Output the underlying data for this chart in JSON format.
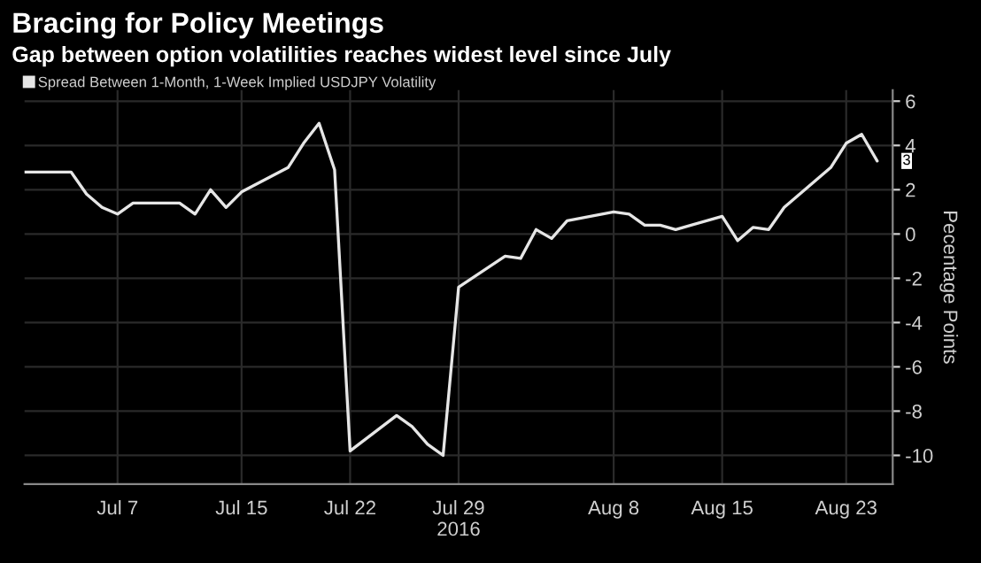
{
  "chart_data": {
    "type": "line",
    "title": "Bracing for Policy Meetings",
    "subtitle": "Gap between option volatilities reaches widest level since July",
    "ylabel": "Pecentage Points",
    "x": [
      "2016-07-01",
      "2016-07-04",
      "2016-07-05",
      "2016-07-06",
      "2016-07-07",
      "2016-07-08",
      "2016-07-11",
      "2016-07-12",
      "2016-07-13",
      "2016-07-14",
      "2016-07-15",
      "2016-07-18",
      "2016-07-19",
      "2016-07-20",
      "2016-07-21",
      "2016-07-22",
      "2016-07-25",
      "2016-07-26",
      "2016-07-27",
      "2016-07-28",
      "2016-07-29",
      "2016-08-01",
      "2016-08-02",
      "2016-08-03",
      "2016-08-04",
      "2016-08-05",
      "2016-08-08",
      "2016-08-09",
      "2016-08-10",
      "2016-08-11",
      "2016-08-12",
      "2016-08-15",
      "2016-08-16",
      "2016-08-17",
      "2016-08-18",
      "2016-08-19",
      "2016-08-22",
      "2016-08-23",
      "2016-08-24",
      "2016-08-25"
    ],
    "series": [
      {
        "name": "Spread Between 1-Month, 1-Week Implied USDJPY Volatility",
        "color": "#e6e6e6",
        "values": [
          2.8,
          2.8,
          1.8,
          1.2,
          0.9,
          1.4,
          1.4,
          0.9,
          2.0,
          1.2,
          1.9,
          3.0,
          4.1,
          5.0,
          2.9,
          -9.8,
          -8.2,
          -8.7,
          -9.5,
          -10.0,
          -2.4,
          -1.0,
          -1.1,
          0.2,
          -0.2,
          0.6,
          1.0,
          0.9,
          0.4,
          0.4,
          0.2,
          0.8,
          -0.3,
          0.3,
          0.2,
          1.2,
          3.0,
          4.1,
          4.5,
          3.3
        ],
        "value_labels": [
          null,
          null,
          null,
          null,
          null,
          null,
          null,
          null,
          null,
          null,
          null,
          null,
          null,
          null,
          null,
          null,
          null,
          null,
          null,
          null,
          null,
          null,
          null,
          null,
          null,
          null,
          null,
          null,
          null,
          null,
          null,
          null,
          null,
          null,
          null,
          null,
          null,
          null,
          null,
          "3"
        ]
      }
    ],
    "xlim": [
      "2016-07-01",
      "2016-08-26"
    ],
    "xticks": [
      {
        "value": "2016-07-07",
        "label": "Jul 7"
      },
      {
        "value": "2016-07-15",
        "label": "Jul 15"
      },
      {
        "value": "2016-07-22",
        "label": "Jul 22"
      },
      {
        "value": "2016-07-29",
        "label": "Jul 29\n2016"
      },
      {
        "value": "2016-08-08",
        "label": "Aug 8"
      },
      {
        "value": "2016-08-15",
        "label": "Aug 15"
      },
      {
        "value": "2016-08-23",
        "label": "Aug 23"
      }
    ],
    "ylim": [
      -11.3,
      6.5
    ],
    "yticks": [
      6,
      4,
      2,
      0,
      -2,
      -4,
      -6,
      -8,
      -10
    ],
    "grid": true,
    "legend": "top left",
    "marker": "none",
    "line_style": "solid"
  }
}
